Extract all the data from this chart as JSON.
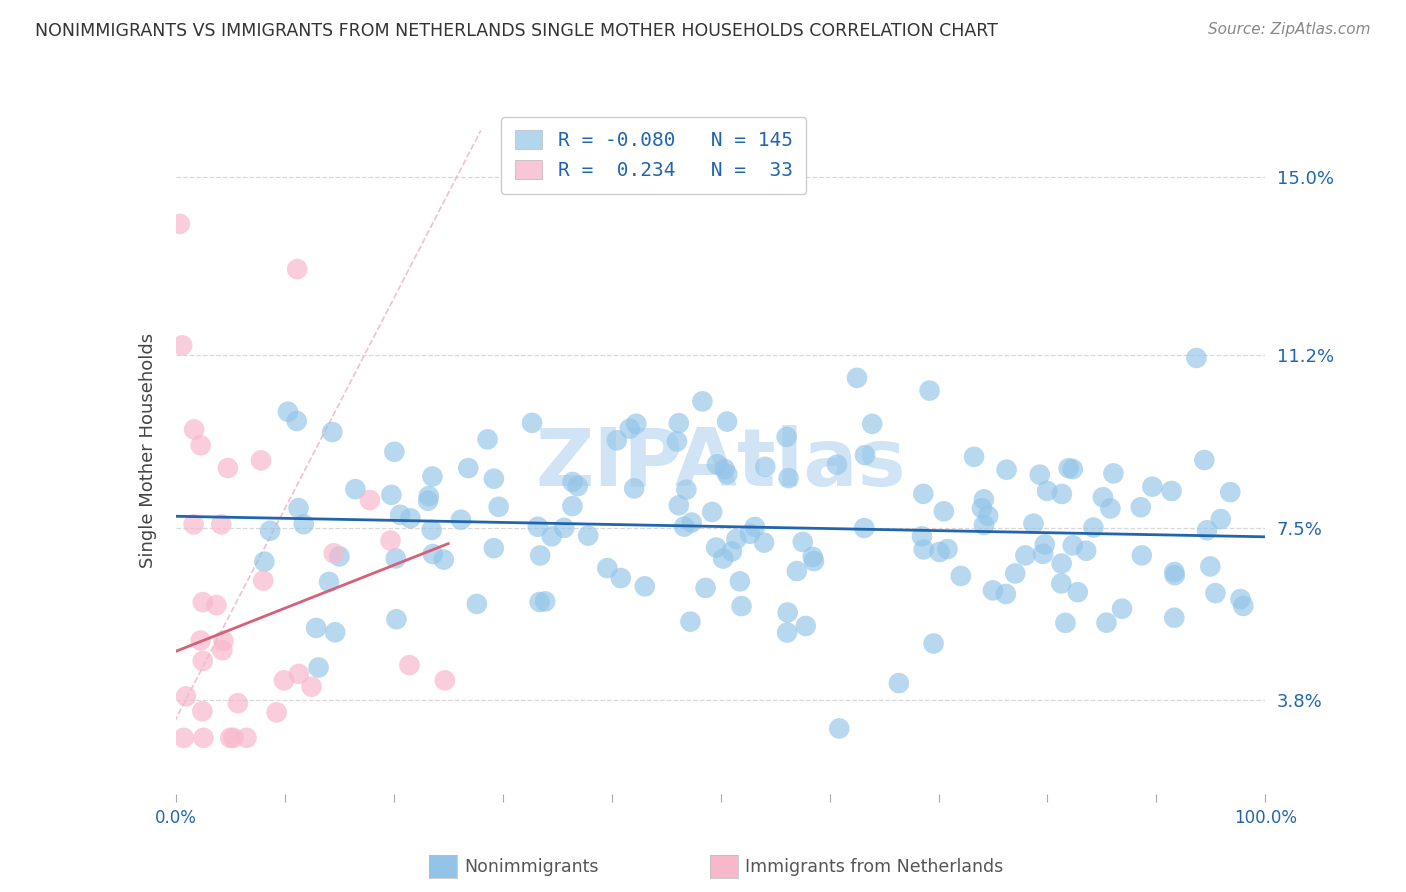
{
  "title": "NONIMMIGRANTS VS IMMIGRANTS FROM NETHERLANDS SINGLE MOTHER HOUSEHOLDS CORRELATION CHART",
  "source": "Source: ZipAtlas.com",
  "ylabel": "Single Mother Households",
  "ytick_vals": [
    3.8,
    7.5,
    11.2,
    15.0
  ],
  "ytick_labels": [
    "3.8%",
    "7.5%",
    "11.2%",
    "15.0%"
  ],
  "xlim": [
    0.0,
    100.0
  ],
  "ylim": [
    1.8,
    16.5
  ],
  "nonimm_R": -0.08,
  "nonimm_N": 145,
  "imm_R": 0.234,
  "imm_N": 33,
  "blue_scatter_color": "#93c4e8",
  "pink_scatter_color": "#f7b8cc",
  "blue_line_color": "#2166ac",
  "pink_line_color": "#d6607a",
  "pink_dash_color": "#f0b8c8",
  "blue_text_color": "#2166ac",
  "watermark_color": "#d0e4f5",
  "background_color": "#ffffff",
  "grid_color": "#d8d8d8",
  "tick_color": "#aaaaaa"
}
